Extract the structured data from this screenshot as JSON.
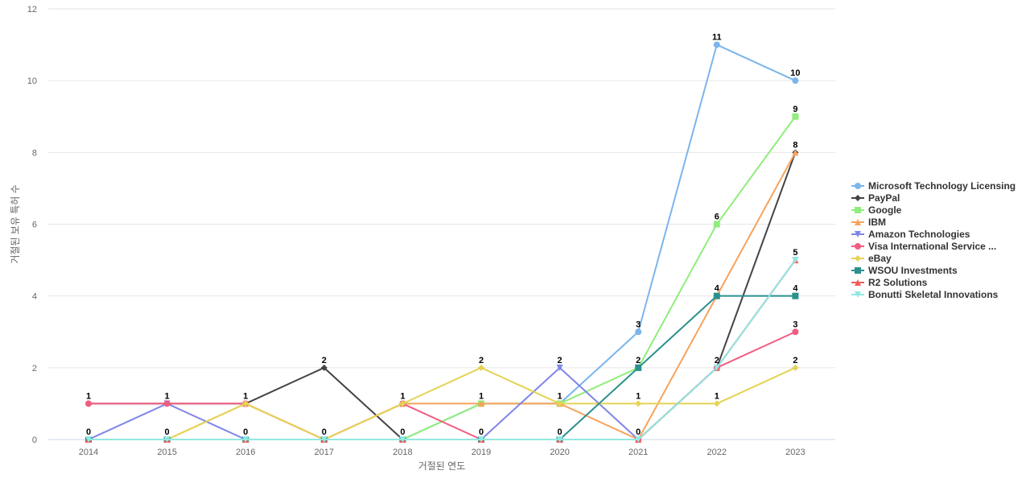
{
  "chart_data": {
    "type": "line",
    "title": "",
    "xlabel": "거절된 연도",
    "ylabel": "거절된 보유 특허 수",
    "categories": [
      "2014",
      "2015",
      "2016",
      "2017",
      "2018",
      "2019",
      "2020",
      "2021",
      "2022",
      "2023"
    ],
    "ylim": [
      0,
      12
    ],
    "yticks": [
      0,
      2,
      4,
      6,
      8,
      10,
      12
    ],
    "grid": true,
    "legend_position": "right",
    "series": [
      {
        "name": "Microsoft Technology Licensing",
        "color": "#7cb5ec",
        "marker": "circle",
        "values": [
          0,
          0,
          0,
          0,
          0,
          1,
          1,
          3,
          11,
          10
        ]
      },
      {
        "name": "PayPal",
        "color": "#434348",
        "marker": "diamond",
        "values": [
          1,
          1,
          1,
          2,
          0,
          0,
          0,
          0,
          2,
          8
        ]
      },
      {
        "name": "Google",
        "color": "#90ed7d",
        "marker": "square",
        "values": [
          0,
          0,
          0,
          0,
          0,
          1,
          1,
          2,
          6,
          9
        ]
      },
      {
        "name": "IBM",
        "color": "#f7a35c",
        "marker": "triangle",
        "values": [
          0,
          0,
          1,
          0,
          1,
          1,
          1,
          0,
          4,
          8
        ]
      },
      {
        "name": "Amazon Technologies",
        "color": "#8085e9",
        "marker": "triangle-down",
        "values": [
          0,
          1,
          0,
          0,
          0,
          0,
          2,
          0,
          2,
          5
        ]
      },
      {
        "name": "Visa International Service ...",
        "color": "#f15c80",
        "marker": "circle",
        "values": [
          1,
          1,
          1,
          0,
          1,
          0,
          0,
          0,
          2,
          3
        ]
      },
      {
        "name": "eBay",
        "color": "#e4d354",
        "marker": "diamond",
        "values": [
          0,
          0,
          1,
          0,
          1,
          2,
          1,
          1,
          1,
          2
        ]
      },
      {
        "name": "WSOU Investments",
        "color": "#2b908f",
        "marker": "square",
        "values": [
          0,
          0,
          0,
          0,
          0,
          0,
          0,
          2,
          4,
          4
        ]
      },
      {
        "name": "R2 Solutions",
        "color": "#f45b5b",
        "marker": "triangle",
        "values": [
          0,
          0,
          0,
          0,
          0,
          0,
          0,
          0,
          2,
          5
        ]
      },
      {
        "name": "Bonutti Skeletal Innovations",
        "color": "#91e8e1",
        "marker": "triangle-down",
        "values": [
          0,
          0,
          0,
          0,
          0,
          0,
          0,
          0,
          2,
          5
        ]
      }
    ],
    "data_labels": [
      {
        "x": "2014",
        "text": "1",
        "value": 1
      },
      {
        "x": "2014",
        "text": "0",
        "value": 0
      },
      {
        "x": "2015",
        "text": "1",
        "value": 1
      },
      {
        "x": "2015",
        "text": "0",
        "value": 0
      },
      {
        "x": "2016",
        "text": "1",
        "value": 1
      },
      {
        "x": "2016",
        "text": "0",
        "value": 0
      },
      {
        "x": "2017",
        "text": "2",
        "value": 2
      },
      {
        "x": "2017",
        "text": "0",
        "value": 0
      },
      {
        "x": "2018",
        "text": "1",
        "value": 1
      },
      {
        "x": "2018",
        "text": "0",
        "value": 0
      },
      {
        "x": "2019",
        "text": "2",
        "value": 2
      },
      {
        "x": "2019",
        "text": "1",
        "value": 1
      },
      {
        "x": "2019",
        "text": "0",
        "value": 0
      },
      {
        "x": "2020",
        "text": "2",
        "value": 2
      },
      {
        "x": "2020",
        "text": "1",
        "value": 1
      },
      {
        "x": "2020",
        "text": "0",
        "value": 0
      },
      {
        "x": "2021",
        "text": "3",
        "value": 3
      },
      {
        "x": "2021",
        "text": "2",
        "value": 2
      },
      {
        "x": "2021",
        "text": "1",
        "value": 1
      },
      {
        "x": "2021",
        "text": "0",
        "value": 0
      },
      {
        "x": "2022",
        "text": "11",
        "value": 11
      },
      {
        "x": "2022",
        "text": "6",
        "value": 6
      },
      {
        "x": "2022",
        "text": "4",
        "value": 4
      },
      {
        "x": "2022",
        "text": "2",
        "value": 2
      },
      {
        "x": "2022",
        "text": "1",
        "value": 1
      },
      {
        "x": "2023",
        "text": "10",
        "value": 10
      },
      {
        "x": "2023",
        "text": "9",
        "value": 9
      },
      {
        "x": "2023",
        "text": "8",
        "value": 8
      },
      {
        "x": "2023",
        "text": "5",
        "value": 5
      },
      {
        "x": "2023",
        "text": "4",
        "value": 4
      },
      {
        "x": "2023",
        "text": "3",
        "value": 3
      },
      {
        "x": "2023",
        "text": "2",
        "value": 2
      }
    ]
  }
}
